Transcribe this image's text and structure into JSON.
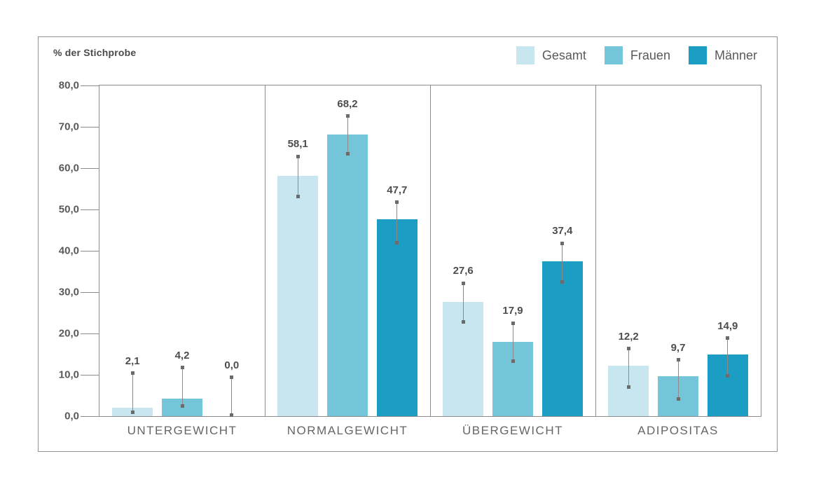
{
  "chart_data": {
    "type": "bar",
    "title": "% der Stichprobe",
    "ylabel": "% der Stichprobe",
    "categories": [
      "UNTERGEWICHT",
      "NORMALGEWICHT",
      "ÜBERGEWICHT",
      "ADIPOSITAS"
    ],
    "series": [
      {
        "name": "Gesamt",
        "color": "#c8e6f0",
        "values": [
          2.1,
          58.1,
          27.6,
          12.2
        ],
        "value_labels": [
          "2,1",
          "58,1",
          "27,6",
          "12,2"
        ],
        "ci_low": [
          1.0,
          53.2,
          22.8,
          7.1
        ],
        "ci_high": [
          10.4,
          62.8,
          32.2,
          16.3
        ]
      },
      {
        "name": "Frauen",
        "color": "#74c5d9",
        "values": [
          4.2,
          68.2,
          17.9,
          9.7
        ],
        "value_labels": [
          "4,2",
          "68,2",
          "17,9",
          "9,7"
        ],
        "ci_low": [
          2.4,
          63.4,
          13.3,
          4.2
        ],
        "ci_high": [
          11.7,
          72.6,
          22.5,
          13.6
        ]
      },
      {
        "name": "Männer",
        "color": "#1c9ec4",
        "values": [
          0.0,
          47.7,
          37.4,
          14.9
        ],
        "value_labels": [
          "0,0",
          "47,7",
          "37,4",
          "14,9"
        ],
        "ci_low": [
          0.3,
          42.0,
          32.4,
          9.7
        ],
        "ci_high": [
          9.4,
          51.7,
          41.8,
          18.9
        ]
      }
    ],
    "ylim": [
      0,
      80
    ],
    "yticks": [
      {
        "label": "0,0",
        "value": 0
      },
      {
        "label": "10,0",
        "value": 10
      },
      {
        "label": "20,0",
        "value": 20
      },
      {
        "label": "30,0",
        "value": 30
      },
      {
        "label": "40,0",
        "value": 40
      },
      {
        "label": "50,0",
        "value": 50
      },
      {
        "label": "60,0",
        "value": 60
      },
      {
        "label": "70,0",
        "value": 70
      },
      {
        "label": "80,0",
        "value": 80
      }
    ],
    "error_bars": true,
    "legend_position": "top-right",
    "grid": "vertical panel separators only, no horizontal gridlines",
    "style_colors": {
      "frame_border": "#919191",
      "plot_border": "#8c8c8c",
      "error_bar": "#8a8a8a",
      "error_marker": "#6b6b6b",
      "value_label_text": "#4d4d4d",
      "axis_label_text": "#595959",
      "category_label_text": "#666666"
    }
  }
}
